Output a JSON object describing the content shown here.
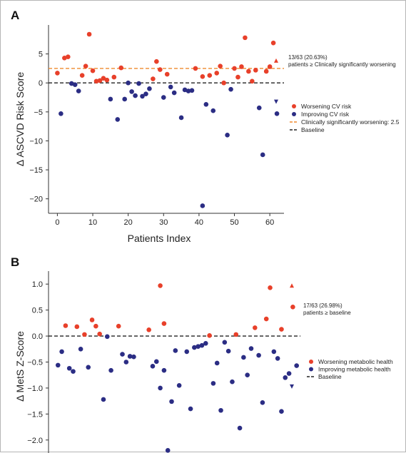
{
  "chart_data": [
    {
      "panel": "A",
      "type": "scatter",
      "ylabel": "Δ ASCVD Risk Score",
      "xlabel": "Patients Index",
      "xlim": [
        -2.5,
        64
      ],
      "ylim": [
        -22.5,
        10
      ],
      "x_ticks": [
        0,
        10,
        20,
        30,
        40,
        50,
        60
      ],
      "y_ticks": [
        5,
        0,
        -5,
        -10,
        -15,
        -20
      ],
      "grid": false,
      "legend_position": "right",
      "threshold": 2.5,
      "baseline": 0,
      "annotation_count": "13/63 (20.63%)",
      "annotation_text": "patients ≥ Clinically significantly worsening",
      "colors": {
        "worsening": "#e8402a",
        "improving": "#2b2d84",
        "threshold": "#ef8a2e",
        "baseline": "#222222"
      },
      "legend": [
        {
          "label": "Worsening CV risk",
          "kind": "dot",
          "color": "#e8402a"
        },
        {
          "label": "Improving CV risk",
          "kind": "dot",
          "color": "#2b2d84"
        },
        {
          "label": "Clinically significantly worsening: 2.5",
          "kind": "dash",
          "color": "#ef8a2e"
        },
        {
          "label": "Baseline",
          "kind": "dash",
          "color": "#222222"
        }
      ],
      "series": [
        {
          "name": "Worsening CV risk",
          "points": [
            [
              0,
              1.7
            ],
            [
              2,
              4.3
            ],
            [
              3,
              4.5
            ],
            [
              7,
              1.3
            ],
            [
              8,
              2.9
            ],
            [
              9,
              8.4
            ],
            [
              10,
              2.1
            ],
            [
              11,
              0.3
            ],
            [
              12,
              0.4
            ],
            [
              13,
              0.8
            ],
            [
              14,
              0.5
            ],
            [
              16,
              1.0
            ],
            [
              18,
              2.6
            ],
            [
              27,
              0.7
            ],
            [
              28,
              3.7
            ],
            [
              29,
              2.3
            ],
            [
              31,
              1.5
            ],
            [
              39,
              2.5
            ],
            [
              41,
              1.1
            ],
            [
              43,
              1.3
            ],
            [
              45,
              1.7
            ],
            [
              46,
              2.9
            ],
            [
              47,
              0
            ],
            [
              50,
              2.5
            ],
            [
              51,
              1.0
            ],
            [
              52,
              2.8
            ],
            [
              53,
              7.8
            ],
            [
              54,
              2.0
            ],
            [
              55,
              0.3
            ],
            [
              56,
              2.2
            ],
            [
              59,
              2.0
            ],
            [
              60,
              2.8
            ],
            [
              61,
              6.9
            ]
          ]
        },
        {
          "name": "Improving CV risk",
          "points": [
            [
              1,
              -5.3
            ],
            [
              4,
              -0.1
            ],
            [
              5,
              -0.3
            ],
            [
              6,
              -1.4
            ],
            [
              15,
              -2.8
            ],
            [
              17,
              -6.3
            ],
            [
              19,
              -2.8
            ],
            [
              20,
              0
            ],
            [
              21,
              -1.5
            ],
            [
              22,
              -2.2
            ],
            [
              23,
              -0.1
            ],
            [
              24,
              -2.3
            ],
            [
              25,
              -1.9
            ],
            [
              26,
              -1.0
            ],
            [
              30,
              -2.5
            ],
            [
              32,
              -0.7
            ],
            [
              33,
              -1.7
            ],
            [
              35,
              -6.0
            ],
            [
              36,
              -1.2
            ],
            [
              37,
              -1.4
            ],
            [
              38,
              -1.3
            ],
            [
              41,
              -21.2
            ],
            [
              42,
              -3.7
            ],
            [
              44,
              -4.8
            ],
            [
              48,
              -9.0
            ],
            [
              49,
              -1.1
            ],
            [
              57,
              -4.3
            ],
            [
              58,
              -12.4
            ],
            [
              62,
              -5.3
            ]
          ]
        }
      ]
    },
    {
      "panel": "B",
      "type": "scatter",
      "ylabel": "Δ MetS Z-Score",
      "xlim": [
        -2.5,
        64
      ],
      "ylim": [
        -2.25,
        1.25
      ],
      "y_ticks": [
        1.0,
        0.5,
        0.0,
        -0.5,
        -1.0,
        -1.5,
        -2.0
      ],
      "grid": false,
      "legend_position": "right",
      "baseline": 0,
      "annotation_count": "17/63 (26.98%)",
      "annotation_text": "patients ≥ baseline",
      "colors": {
        "worsening": "#e8402a",
        "improving": "#2b2d84",
        "baseline": "#222222"
      },
      "legend": [
        {
          "label": "Worsening metabolic health",
          "kind": "dot",
          "color": "#e8402a"
        },
        {
          "label": "Improving metabolic health",
          "kind": "dot",
          "color": "#2b2d84"
        },
        {
          "label": "Baseline",
          "kind": "dash",
          "color": "#222222"
        }
      ],
      "series": [
        {
          "name": "Worsening metabolic health",
          "points": [
            [
              2,
              0.2
            ],
            [
              5,
              0.18
            ],
            [
              7,
              0.03
            ],
            [
              9,
              0.31
            ],
            [
              10,
              0.19
            ],
            [
              11,
              0.04
            ],
            [
              16,
              0.19
            ],
            [
              24,
              0.12
            ],
            [
              27,
              0.97
            ],
            [
              28,
              0.24
            ],
            [
              40,
              0.01
            ],
            [
              47,
              0.03
            ],
            [
              52,
              0.16
            ],
            [
              55,
              0.33
            ],
            [
              56,
              0.93
            ],
            [
              59,
              0.13
            ],
            [
              62,
              0.56
            ]
          ]
        },
        {
          "name": "Improving metabolic health",
          "points": [
            [
              0,
              -0.56
            ],
            [
              1,
              -0.3
            ],
            [
              3,
              -0.62
            ],
            [
              4,
              -0.68
            ],
            [
              6,
              -0.25
            ],
            [
              8,
              -0.6
            ],
            [
              12,
              -1.22
            ],
            [
              13,
              -0.01
            ],
            [
              14,
              -0.66
            ],
            [
              17,
              -0.35
            ],
            [
              18,
              -0.5
            ],
            [
              19,
              -0.39
            ],
            [
              20,
              -0.4
            ],
            [
              25,
              -0.58
            ],
            [
              26,
              -0.49
            ],
            [
              27,
              -1.0
            ],
            [
              28,
              -0.66
            ],
            [
              29,
              -2.2
            ],
            [
              30,
              -1.26
            ],
            [
              31,
              -0.28
            ],
            [
              32,
              -0.95
            ],
            [
              34,
              -0.3
            ],
            [
              35,
              -1.4
            ],
            [
              36,
              -0.22
            ],
            [
              37,
              -0.2
            ],
            [
              38,
              -0.18
            ],
            [
              39,
              -0.14
            ],
            [
              41,
              -0.91
            ],
            [
              42,
              -0.52
            ],
            [
              43,
              -1.43
            ],
            [
              44,
              -0.12
            ],
            [
              45,
              -0.29
            ],
            [
              46,
              -0.88
            ],
            [
              48,
              -1.77
            ],
            [
              49,
              -0.41
            ],
            [
              50,
              -0.75
            ],
            [
              51,
              -0.24
            ],
            [
              53,
              -0.37
            ],
            [
              54,
              -1.28
            ],
            [
              57,
              -0.3
            ],
            [
              58,
              -0.43
            ],
            [
              59,
              -1.45
            ],
            [
              60,
              -0.8
            ],
            [
              61,
              -0.72
            ],
            [
              63,
              -0.57
            ]
          ]
        }
      ]
    }
  ]
}
